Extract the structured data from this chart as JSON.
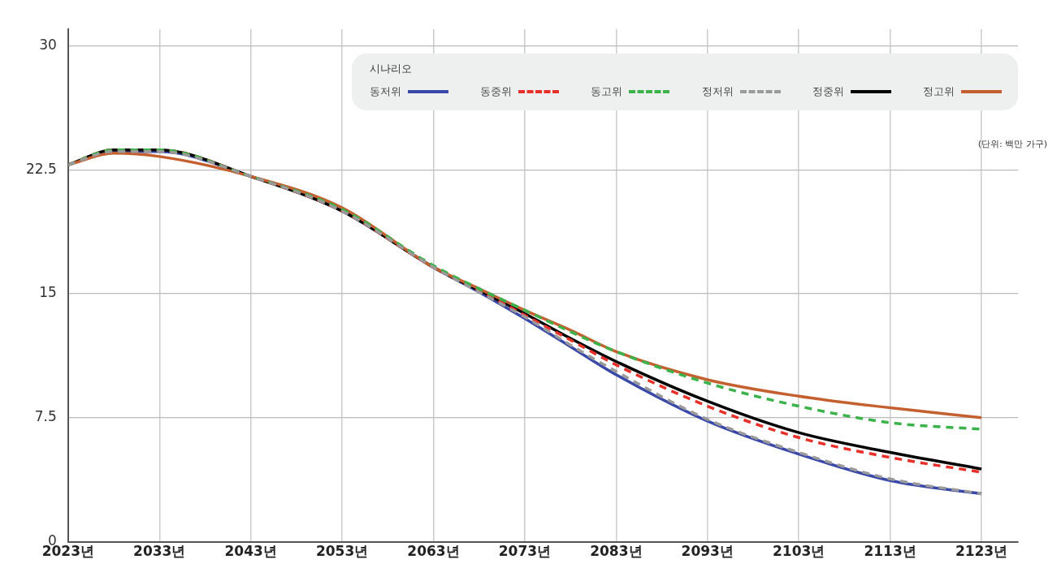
{
  "chart_data": {
    "type": "line",
    "legend_title": "시나리오",
    "legend": "top right",
    "grid": true,
    "x": [
      2023,
      2028,
      2033,
      2043,
      2053,
      2063,
      2068,
      2073,
      2078,
      2083,
      2093,
      2103,
      2113,
      2123
    ],
    "xlim": [
      2023,
      2127
    ],
    "xticks": [
      {
        "value": 2023,
        "label": "2023년"
      },
      {
        "value": 2033,
        "label": "2033년"
      },
      {
        "value": 2043,
        "label": "2043년"
      },
      {
        "value": 2053,
        "label": "2053년"
      },
      {
        "value": 2063,
        "label": "2063년"
      },
      {
        "value": 2073,
        "label": "2073년"
      },
      {
        "value": 2083,
        "label": "2083년"
      },
      {
        "value": 2093,
        "label": "2093년"
      },
      {
        "value": 2103,
        "label": "2103년"
      },
      {
        "value": 2113,
        "label": "2113년"
      },
      {
        "value": 2123,
        "label": "2123년"
      }
    ],
    "ylim": [
      0,
      31
    ],
    "yticks": [
      0,
      7.5,
      15,
      22.5,
      30
    ],
    "annotations": [
      "(단위: 백만 가구)"
    ],
    "series": [
      {
        "name": "동저위",
        "color": "#3a48a8",
        "line_style": "solid",
        "values": [
          22.8,
          23.6,
          23.6,
          22.1,
          20.0,
          16.6,
          15.1,
          13.5,
          11.8,
          10.1,
          7.3,
          5.3,
          3.7,
          2.9
        ]
      },
      {
        "name": "동중위",
        "color": "#e8302a",
        "line_style": "dashed",
        "values": [
          22.8,
          23.7,
          23.7,
          22.1,
          20.0,
          16.6,
          15.2,
          13.7,
          12.2,
          10.7,
          8.2,
          6.3,
          5.1,
          4.2
        ]
      },
      {
        "name": "동고위",
        "color": "#3cb24a",
        "line_style": "dashed",
        "values": [
          22.8,
          23.7,
          23.7,
          22.1,
          20.1,
          16.7,
          15.3,
          14.0,
          12.7,
          11.5,
          9.6,
          8.2,
          7.2,
          6.8
        ]
      },
      {
        "name": "정저위",
        "color": "#9a9a9a",
        "line_style": "dashed",
        "values": [
          22.8,
          23.6,
          23.6,
          22.1,
          20.0,
          16.6,
          15.1,
          13.6,
          11.9,
          10.3,
          7.4,
          5.4,
          3.8,
          2.9
        ]
      },
      {
        "name": "정중위",
        "color": "#000000",
        "line_style": "solid",
        "values": [
          22.8,
          23.7,
          23.7,
          22.1,
          20.0,
          16.6,
          15.2,
          13.8,
          12.3,
          10.9,
          8.5,
          6.6,
          5.4,
          4.4
        ]
      },
      {
        "name": "정고위",
        "color": "#c4602f",
        "line_style": "solid",
        "values": [
          22.8,
          23.5,
          23.3,
          22.1,
          20.2,
          16.6,
          15.3,
          14.0,
          12.8,
          11.5,
          9.8,
          8.8,
          8.1,
          7.5
        ]
      }
    ]
  }
}
